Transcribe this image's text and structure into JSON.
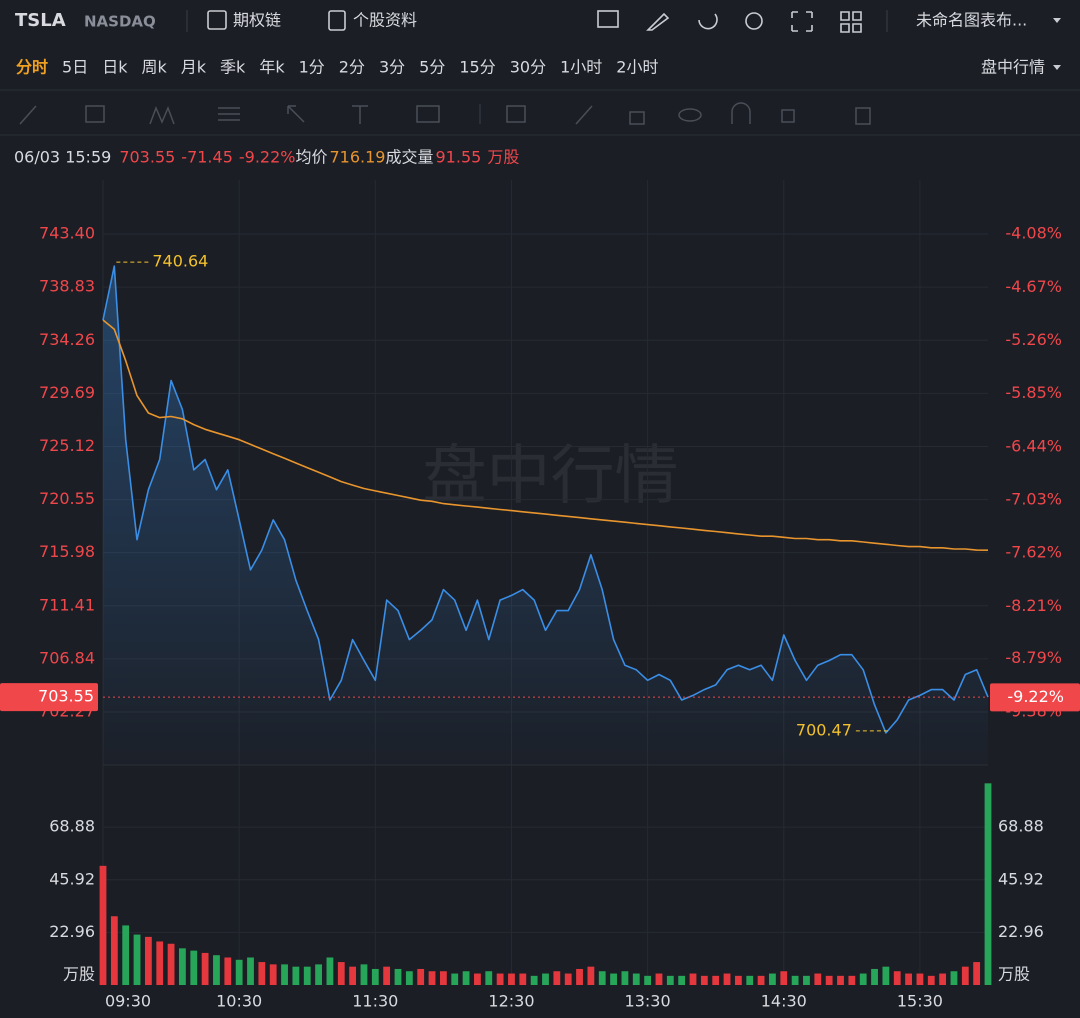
{
  "toolbar": {
    "symbol": "TSLA",
    "exchange": "NASDAQ",
    "buttons": [
      "期权链",
      "个股资料"
    ],
    "layout_name": "未命名图表布..."
  },
  "periods": [
    "分时",
    "5日",
    "日k",
    "周k",
    "月k",
    "季k",
    "年k",
    "1分",
    "2分",
    "3分",
    "5分",
    "15分",
    "30分",
    "1小时",
    "2小时"
  ],
  "active_color": "#f0a020",
  "mode": "盘中行情",
  "quote": {
    "datetime": "06/03 15:59",
    "price": "703.55",
    "change": "-71.45",
    "change_pct": "-9.22%",
    "avg_label": "均价",
    "avg": "716.19",
    "volume_label": "成交量",
    "volume": "91.55",
    "volume_unit": "万股"
  },
  "chart_data": [
    {
      "type": "line",
      "watermark": "盘中行情",
      "categories": [
        "09:30",
        null,
        null,
        null,
        null,
        null,
        null,
        null,
        null,
        null,
        null,
        null,
        "10:30",
        null,
        null,
        null,
        null,
        null,
        null,
        null,
        null,
        null,
        null,
        null,
        "11:30",
        null,
        null,
        null,
        null,
        null,
        null,
        null,
        null,
        null,
        null,
        null,
        "12:30",
        null,
        null,
        null,
        null,
        null,
        null,
        null,
        null,
        null,
        null,
        null,
        "13:30",
        null,
        null,
        null,
        null,
        null,
        null,
        null,
        null,
        null,
        null,
        null,
        "14:30",
        null,
        null,
        null,
        null,
        null,
        null,
        null,
        null,
        null,
        null,
        null,
        "15:30",
        null,
        null,
        null,
        null,
        null,
        null
      ],
      "series": [
        {
          "color": "#3a8ee6",
          "values": [
            736.0,
            740.64,
            725.7,
            717.1,
            721.4,
            724.0,
            730.8,
            728.3,
            723.1,
            724.0,
            721.4,
            723.1,
            718.8,
            714.5,
            716.2,
            718.8,
            717.1,
            713.6,
            711.0,
            708.5,
            703.3,
            705.0,
            708.5,
            706.7,
            705.0,
            711.9,
            711.0,
            708.5,
            709.3,
            710.2,
            712.8,
            711.9,
            709.3,
            711.9,
            708.5,
            711.9,
            712.3,
            712.8,
            711.9,
            709.3,
            711.0,
            711.0,
            712.8,
            715.8,
            712.8,
            708.5,
            706.3,
            705.9,
            705.0,
            705.5,
            705.0,
            703.3,
            703.7,
            704.2,
            704.6,
            705.9,
            706.3,
            705.9,
            706.3,
            705.0,
            708.9,
            706.7,
            705.0,
            706.3,
            706.7,
            707.2,
            707.2,
            705.9,
            702.9,
            700.47,
            701.6,
            703.3,
            703.7,
            704.2,
            704.2,
            703.3,
            705.5,
            705.9,
            703.55
          ]
        },
        {
          "color": "#e8952e",
          "values": [
            736.0,
            735.2,
            732.5,
            729.5,
            728.0,
            727.6,
            727.7,
            727.5,
            727.0,
            726.6,
            726.3,
            726.0,
            725.7,
            725.3,
            724.9,
            724.5,
            724.1,
            723.7,
            723.3,
            722.9,
            722.5,
            722.1,
            721.8,
            721.5,
            721.3,
            721.1,
            720.9,
            720.7,
            720.5,
            720.4,
            720.2,
            720.1,
            720.0,
            719.9,
            719.8,
            719.7,
            719.6,
            719.5,
            719.4,
            719.3,
            719.2,
            719.1,
            719.0,
            718.9,
            718.8,
            718.7,
            718.6,
            718.5,
            718.4,
            718.3,
            718.2,
            718.1,
            718.0,
            717.9,
            717.8,
            717.7,
            717.6,
            717.5,
            717.4,
            717.4,
            717.3,
            717.2,
            717.2,
            717.1,
            717.1,
            717.0,
            717.0,
            716.9,
            716.8,
            716.7,
            716.6,
            716.5,
            716.5,
            716.4,
            716.4,
            716.3,
            716.3,
            716.2,
            716.19
          ]
        }
      ],
      "ylim": [
        697.71,
        748.05
      ],
      "yticks": [
        {
          "value": 743.4,
          "label": "743.40"
        },
        738.83,
        734.26,
        729.69,
        725.12,
        720.55,
        715.98,
        711.41,
        706.84,
        702.27
      ],
      "y2lim": [
        -9.97,
        -3.48
      ],
      "y2ticks": [
        {
          "value": -4.08,
          "label": "-4.08%"
        },
        {
          "value": -4.67,
          "label": "-4.67%"
        },
        {
          "value": -5.26,
          "label": "-5.26%"
        },
        {
          "value": -5.85,
          "label": "-5.85%"
        },
        {
          "value": -6.44,
          "label": "-6.44%"
        },
        {
          "value": -7.03,
          "label": "-7.03%"
        },
        {
          "value": -7.62,
          "label": "-7.62%"
        },
        {
          "value": -8.21,
          "label": "-8.21%"
        },
        {
          "value": -8.79,
          "label": "-8.79%"
        },
        {
          "value": -9.38,
          "label": "-9.38%"
        }
      ],
      "last_price": 703.55,
      "last_pct": {
        "value": -9.22,
        "label": "-9.22%"
      },
      "annotations": [
        740.64,
        700.47
      ],
      "axis_color": "#f0474b",
      "annotation_color": "#f2c12e",
      "grid": true
    },
    {
      "type": "bar",
      "values": [
        52,
        30,
        26,
        22,
        21,
        19,
        18,
        16,
        15,
        14,
        13,
        12,
        11,
        12,
        10,
        9,
        9,
        8,
        8,
        9,
        12,
        10,
        8,
        9,
        7,
        8,
        7,
        6,
        7,
        6,
        6,
        5,
        6,
        5,
        6,
        5,
        5,
        5,
        4,
        5,
        6,
        5,
        7,
        8,
        6,
        5,
        6,
        5,
        4,
        5,
        4,
        4,
        5,
        4,
        4,
        5,
        4,
        4,
        4,
        5,
        6,
        4,
        4,
        5,
        4,
        4,
        4,
        5,
        7,
        8,
        6,
        5,
        5,
        4,
        5,
        6,
        8,
        10,
        88
      ],
      "ylim": [
        0,
        96
      ],
      "yticks": [
        22.96,
        45.92,
        68.88
      ],
      "unit": "万股",
      "up_color": "#e5383e",
      "down_color": "#27a65a",
      "grid": true
    }
  ]
}
